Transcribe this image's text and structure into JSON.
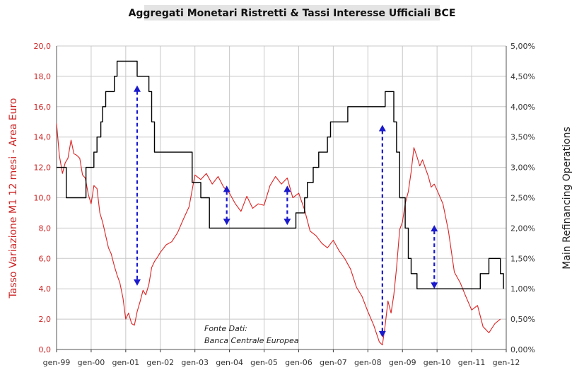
{
  "chart_data": {
    "type": "line",
    "title": "Aggregati Monetari Ristretti & Tassi Interesse Ufficiali BCE",
    "ylabel_left": "Tasso Variazione M1 12 mesi - Area Euro",
    "ylabel_right": "Main Refinancing Operations",
    "ylim_left": [
      0,
      20
    ],
    "ylim_right": [
      0,
      5
    ],
    "xlim": [
      1999.0,
      2012.0
    ],
    "yticks_left": [
      "0,0",
      "2,0",
      "4,0",
      "6,0",
      "8,0",
      "10,0",
      "12,0",
      "14,0",
      "16,0",
      "18,0",
      "20,0"
    ],
    "yticks_right": [
      "0,00%",
      "0,50%",
      "1,00%",
      "1,50%",
      "2,00%",
      "2,50%",
      "3,00%",
      "3,50%",
      "4,00%",
      "4,50%",
      "5,00%"
    ],
    "xticks": [
      "gen-99",
      "gen-00",
      "gen-01",
      "gen-02",
      "gen-03",
      "gen-04",
      "gen-05",
      "gen-06",
      "gen-07",
      "gen-08",
      "gen-09",
      "gen-10",
      "gen-11",
      "gen-12"
    ],
    "grid": true,
    "annotation": {
      "line1": "Fonte Dati:",
      "line2": "Banca Centrale Europea"
    },
    "colors": {
      "m1": "#dd2222",
      "mro": "#000000",
      "arrow": "#1a1acc",
      "grid": "#c8c8c8",
      "left_axis": "#cc2222",
      "title_bg": "#e4e4e4"
    },
    "series": [
      {
        "name": "M1 12m growth (left axis)",
        "axis": "left",
        "color": "#dd2222",
        "x": [
          1999.0,
          1999.08,
          1999.17,
          1999.25,
          1999.33,
          1999.42,
          1999.5,
          1999.58,
          1999.67,
          1999.75,
          1999.83,
          1999.92,
          2000.0,
          2000.08,
          2000.17,
          2000.25,
          2000.33,
          2000.42,
          2000.5,
          2000.58,
          2000.67,
          2000.75,
          2000.83,
          2000.92,
          2001.0,
          2001.08,
          2001.17,
          2001.25,
          2001.33,
          2001.42,
          2001.5,
          2001.58,
          2001.67,
          2001.75,
          2001.83,
          2001.92,
          2002.0,
          2002.17,
          2002.33,
          2002.5,
          2002.67,
          2002.83,
          2003.0,
          2003.17,
          2003.33,
          2003.5,
          2003.67,
          2003.83,
          2004.0,
          2004.17,
          2004.33,
          2004.5,
          2004.67,
          2004.83,
          2005.0,
          2005.17,
          2005.33,
          2005.5,
          2005.67,
          2005.83,
          2006.0,
          2006.17,
          2006.33,
          2006.5,
          2006.67,
          2006.83,
          2007.0,
          2007.17,
          2007.33,
          2007.5,
          2007.67,
          2007.83,
          2008.0,
          2008.17,
          2008.33,
          2008.42,
          2008.5,
          2008.58,
          2008.67,
          2008.75,
          2008.83,
          2008.92,
          2009.0,
          2009.08,
          2009.17,
          2009.25,
          2009.33,
          2009.42,
          2009.5,
          2009.58,
          2009.67,
          2009.75,
          2009.83,
          2009.92,
          2010.0,
          2010.17,
          2010.33,
          2010.5,
          2010.67,
          2010.83,
          2011.0,
          2011.17,
          2011.33,
          2011.5,
          2011.67,
          2011.83
        ],
        "values": [
          14.9,
          12.8,
          11.6,
          12.3,
          12.6,
          13.8,
          12.9,
          12.8,
          12.6,
          11.5,
          11.3,
          10.2,
          9.6,
          10.8,
          10.6,
          9.0,
          8.4,
          7.5,
          6.7,
          6.3,
          5.5,
          4.9,
          4.4,
          3.4,
          2.0,
          2.4,
          1.7,
          1.6,
          2.5,
          3.2,
          3.9,
          3.6,
          4.3,
          5.4,
          5.8,
          6.1,
          6.4,
          6.9,
          7.1,
          7.7,
          8.6,
          9.4,
          11.5,
          11.2,
          11.6,
          10.9,
          11.4,
          10.7,
          10.3,
          9.6,
          9.1,
          10.1,
          9.3,
          9.6,
          9.5,
          10.8,
          11.4,
          10.9,
          11.3,
          10.0,
          10.3,
          9.2,
          7.8,
          7.5,
          7.0,
          6.7,
          7.2,
          6.5,
          6.0,
          5.3,
          4.1,
          3.5,
          2.5,
          1.6,
          0.5,
          0.3,
          1.6,
          3.2,
          2.4,
          3.6,
          5.4,
          7.9,
          8.4,
          9.6,
          10.4,
          11.7,
          13.3,
          12.7,
          12.1,
          12.5,
          11.9,
          11.4,
          10.7,
          10.9,
          10.5,
          9.6,
          7.8,
          5.1,
          4.4,
          3.5,
          2.6,
          2.9,
          1.5,
          1.1,
          1.7,
          2.0
        ]
      },
      {
        "name": "MRO rate (right axis)",
        "axis": "right",
        "color": "#000000",
        "step": true,
        "x": [
          1999.0,
          1999.28,
          1999.85,
          2000.08,
          2000.17,
          2000.28,
          2000.33,
          2000.42,
          2000.67,
          2000.75,
          2001.33,
          2001.67,
          2001.75,
          2001.83,
          2002.92,
          2003.17,
          2003.42,
          2005.92,
          2006.17,
          2006.25,
          2006.42,
          2006.58,
          2006.83,
          2006.92,
          2007.25,
          2007.42,
          2008.5,
          2008.75,
          2008.83,
          2008.92,
          2009.08,
          2009.17,
          2009.25,
          2009.42,
          2011.25,
          2011.5,
          2011.83,
          2011.92
        ],
        "values": [
          3.0,
          2.5,
          3.0,
          3.25,
          3.5,
          3.75,
          4.0,
          4.25,
          4.5,
          4.75,
          4.5,
          4.25,
          3.75,
          3.25,
          2.75,
          2.5,
          2.0,
          2.25,
          2.5,
          2.75,
          3.0,
          3.25,
          3.5,
          3.75,
          3.75,
          4.0,
          4.25,
          3.75,
          3.25,
          2.5,
          2.0,
          1.5,
          1.25,
          1.0,
          1.25,
          1.5,
          1.25,
          1.0
        ]
      }
    ],
    "arrows": [
      {
        "x": 2001.33,
        "m1_from": 4.2,
        "mro_to": 4.35
      },
      {
        "x": 2003.92,
        "m1_from": 10.8,
        "mro_to": 2.05
      },
      {
        "x": 2005.67,
        "m1_from": 10.8,
        "mro_to": 2.05
      },
      {
        "x": 2008.42,
        "m1_from": 0.8,
        "mro_to": 3.7
      },
      {
        "x": 2009.92,
        "m1_from": 8.2,
        "mro_to": 1.0
      }
    ]
  }
}
